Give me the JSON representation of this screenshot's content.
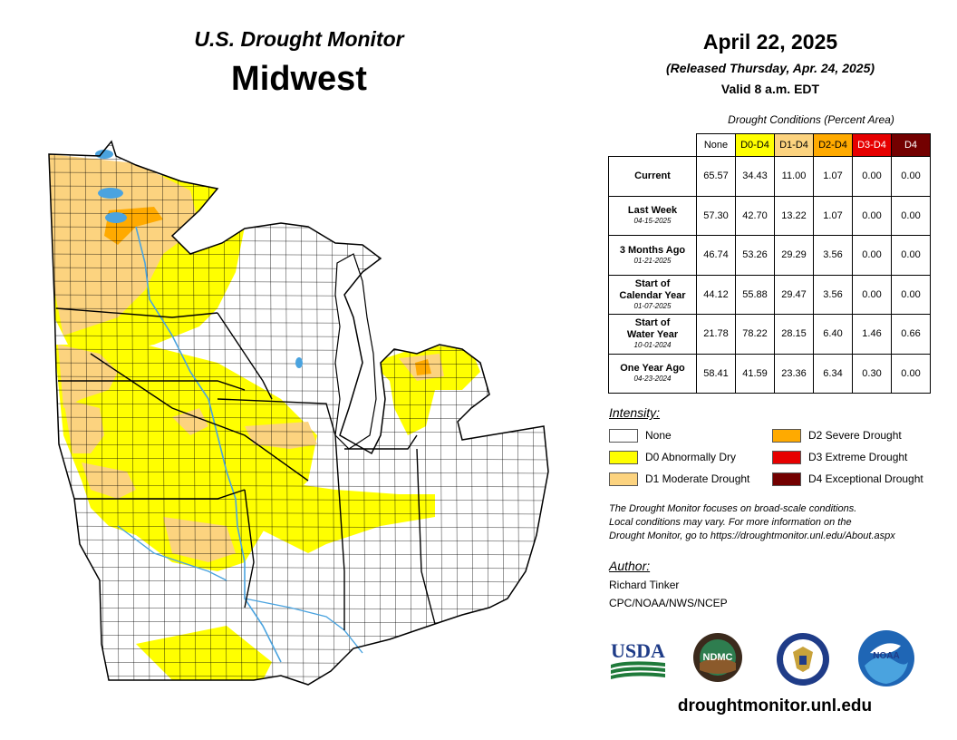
{
  "header": {
    "title": "U.S. Drought Monitor",
    "region": "Midwest"
  },
  "map": {
    "date": "April 22, 2025",
    "released": "(Released Thursday, Apr. 24, 2025)",
    "valid": "Valid 8 a.m. EDT"
  },
  "table": {
    "caption": "Drought Conditions (Percent Area)",
    "columns": [
      "None",
      "D0-D4",
      "D1-D4",
      "D2-D4",
      "D3-D4",
      "D4"
    ],
    "column_colors": [
      "#ffffff",
      "#ffff00",
      "#fcd37f",
      "#ffaa00",
      "#e60000",
      "#730000"
    ],
    "rows": [
      {
        "label": "Current",
        "label2": "",
        "date": "",
        "values": [
          "65.57",
          "34.43",
          "11.00",
          "1.07",
          "0.00",
          "0.00"
        ]
      },
      {
        "label": "Last Week",
        "label2": "",
        "date": "04-15-2025",
        "values": [
          "57.30",
          "42.70",
          "13.22",
          "1.07",
          "0.00",
          "0.00"
        ]
      },
      {
        "label": "3 Months Ago",
        "label2": "",
        "date": "01-21-2025",
        "values": [
          "46.74",
          "53.26",
          "29.29",
          "3.56",
          "0.00",
          "0.00"
        ]
      },
      {
        "label": "Start of",
        "label2": "Calendar Year",
        "date": "01-07-2025",
        "values": [
          "44.12",
          "55.88",
          "29.47",
          "3.56",
          "0.00",
          "0.00"
        ]
      },
      {
        "label": "Start of",
        "label2": "Water Year",
        "date": "10-01-2024",
        "values": [
          "21.78",
          "78.22",
          "28.15",
          "6.40",
          "1.46",
          "0.66"
        ]
      },
      {
        "label": "One Year Ago",
        "label2": "",
        "date": "04-23-2024",
        "values": [
          "58.41",
          "41.59",
          "23.36",
          "6.34",
          "0.30",
          "0.00"
        ]
      }
    ]
  },
  "legend": {
    "title": "Intensity:",
    "items": [
      {
        "label": "None",
        "color": "#ffffff"
      },
      {
        "label": "D0 Abnormally Dry",
        "color": "#ffff00"
      },
      {
        "label": "D1 Moderate Drought",
        "color": "#fcd37f"
      },
      {
        "label": "D2 Severe Drought",
        "color": "#ffaa00"
      },
      {
        "label": "D3 Extreme Drought",
        "color": "#e60000"
      },
      {
        "label": "D4 Exceptional Drought",
        "color": "#730000"
      }
    ]
  },
  "note": {
    "line1": "The Drought Monitor focuses on broad-scale conditions.",
    "line2": "Local conditions may vary. For more information on the",
    "line3": "Drought Monitor, go to https://droughtmonitor.unl.edu/About.aspx"
  },
  "author": {
    "label": "Author:",
    "name": "Richard Tinker",
    "org": "CPC/NOAA/NWS/NCEP"
  },
  "logos": {
    "usda": "USDA",
    "ndmc": "NDMC",
    "noaa": "NOAA"
  },
  "website": "droughtmonitor.unl.edu"
}
